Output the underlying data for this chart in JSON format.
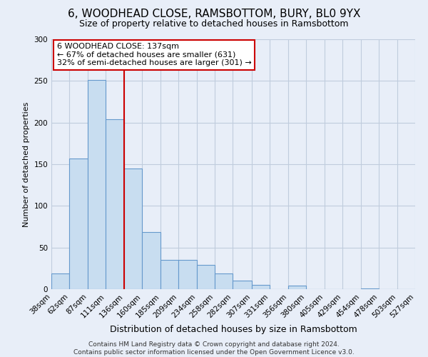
{
  "title": "6, WOODHEAD CLOSE, RAMSBOTTOM, BURY, BL0 9YX",
  "subtitle": "Size of property relative to detached houses in Ramsbottom",
  "xlabel": "Distribution of detached houses by size in Ramsbottom",
  "ylabel": "Number of detached properties",
  "bar_values": [
    19,
    157,
    251,
    204,
    145,
    69,
    35,
    35,
    29,
    19,
    10,
    5,
    0,
    4,
    0,
    0,
    0,
    1,
    0,
    0
  ],
  "bar_labels": [
    "38sqm",
    "62sqm",
    "87sqm",
    "111sqm",
    "136sqm",
    "160sqm",
    "185sqm",
    "209sqm",
    "234sqm",
    "258sqm",
    "282sqm",
    "307sqm",
    "331sqm",
    "356sqm",
    "380sqm",
    "405sqm",
    "429sqm",
    "454sqm",
    "478sqm",
    "503sqm",
    "527sqm"
  ],
  "bar_color": "#c8ddf0",
  "bar_edge_color": "#6699cc",
  "ylim": [
    0,
    300
  ],
  "yticks": [
    0,
    50,
    100,
    150,
    200,
    250,
    300
  ],
  "property_line_x": 136,
  "annotation_title": "6 WOODHEAD CLOSE: 137sqm",
  "annotation_line1": "← 67% of detached houses are smaller (631)",
  "annotation_line2": "32% of semi-detached houses are larger (301) →",
  "annotation_box_facecolor": "#ffffff",
  "annotation_box_edgecolor": "#cc0000",
  "footer_line1": "Contains HM Land Registry data © Crown copyright and database right 2024.",
  "footer_line2": "Contains public sector information licensed under the Open Government Licence v3.0.",
  "bin_edges": [
    38,
    62,
    87,
    111,
    136,
    160,
    185,
    209,
    234,
    258,
    282,
    307,
    331,
    356,
    380,
    405,
    429,
    454,
    478,
    503,
    527
  ],
  "background_color": "#e8eef8",
  "grid_color": "#c0ccdd",
  "title_fontsize": 11,
  "subtitle_fontsize": 9,
  "ylabel_fontsize": 8,
  "xlabel_fontsize": 9,
  "tick_fontsize": 7.5,
  "annotation_fontsize": 8,
  "footer_fontsize": 6.5
}
